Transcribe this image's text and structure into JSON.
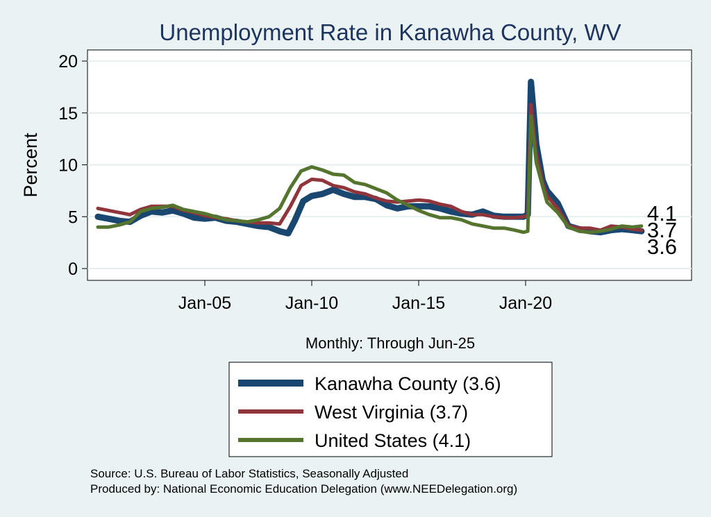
{
  "chart_data": {
    "type": "line",
    "title": "Unemployment Rate in Kanawha  County, WV",
    "ylabel": "Percent",
    "xlabel": "Monthly: Through Jun-25",
    "ylim": [
      0,
      20
    ],
    "xlim": [
      2000.0,
      2028.0
    ],
    "yticks": [
      0,
      5,
      10,
      15,
      20
    ],
    "xticks": [
      {
        "x": 2005.0,
        "label": "Jan-05"
      },
      {
        "x": 2010.0,
        "label": "Jan-10"
      },
      {
        "x": 2015.0,
        "label": "Jan-15"
      },
      {
        "x": 2020.0,
        "label": "Jan-20"
      }
    ],
    "grid": true,
    "legend_position": "bottom",
    "series": [
      {
        "name": "Kanawha  County",
        "legend": "Kanawha  County (3.6)",
        "end_label": "3.6",
        "color": "#1a476f",
        "points": [
          [
            2000.0,
            5.0
          ],
          [
            2000.5,
            4.8
          ],
          [
            2001.0,
            4.6
          ],
          [
            2001.5,
            4.5
          ],
          [
            2002.0,
            5.1
          ],
          [
            2002.5,
            5.5
          ],
          [
            2003.0,
            5.4
          ],
          [
            2003.5,
            5.6
          ],
          [
            2004.0,
            5.3
          ],
          [
            2004.5,
            4.9
          ],
          [
            2005.0,
            4.8
          ],
          [
            2005.5,
            4.9
          ],
          [
            2006.0,
            4.6
          ],
          [
            2006.5,
            4.5
          ],
          [
            2007.0,
            4.3
          ],
          [
            2007.5,
            4.1
          ],
          [
            2008.0,
            4.0
          ],
          [
            2008.5,
            3.6
          ],
          [
            2008.9,
            3.4
          ],
          [
            2009.2,
            4.6
          ],
          [
            2009.6,
            6.5
          ],
          [
            2010.0,
            7.0
          ],
          [
            2010.5,
            7.2
          ],
          [
            2011.0,
            7.6
          ],
          [
            2011.5,
            7.2
          ],
          [
            2012.0,
            6.9
          ],
          [
            2012.5,
            6.9
          ],
          [
            2013.0,
            6.7
          ],
          [
            2013.5,
            6.1
          ],
          [
            2014.0,
            5.8
          ],
          [
            2014.5,
            6.0
          ],
          [
            2015.0,
            6.0
          ],
          [
            2015.5,
            6.0
          ],
          [
            2016.0,
            5.8
          ],
          [
            2016.5,
            5.5
          ],
          [
            2017.0,
            5.3
          ],
          [
            2017.5,
            5.2
          ],
          [
            2018.0,
            5.5
          ],
          [
            2018.5,
            5.1
          ],
          [
            2019.0,
            5.0
          ],
          [
            2019.5,
            5.0
          ],
          [
            2019.9,
            5.0
          ],
          [
            2020.1,
            5.2
          ],
          [
            2020.25,
            18.0
          ],
          [
            2020.5,
            12.0
          ],
          [
            2020.8,
            8.5
          ],
          [
            2021.0,
            7.5
          ],
          [
            2021.5,
            6.3
          ],
          [
            2022.0,
            4.1
          ],
          [
            2022.5,
            3.8
          ],
          [
            2023.0,
            3.6
          ],
          [
            2023.5,
            3.5
          ],
          [
            2024.0,
            3.7
          ],
          [
            2024.5,
            3.8
          ],
          [
            2025.0,
            3.7
          ],
          [
            2025.42,
            3.6
          ]
        ]
      },
      {
        "name": "West Virginia",
        "legend": "West Virginia (3.7)",
        "end_label": "3.7",
        "color": "#90353b",
        "points": [
          [
            2000.0,
            5.8
          ],
          [
            2000.5,
            5.6
          ],
          [
            2001.0,
            5.4
          ],
          [
            2001.5,
            5.2
          ],
          [
            2002.0,
            5.7
          ],
          [
            2002.5,
            6.0
          ],
          [
            2003.0,
            6.0
          ],
          [
            2003.5,
            6.0
          ],
          [
            2004.0,
            5.6
          ],
          [
            2004.5,
            5.4
          ],
          [
            2005.0,
            5.1
          ],
          [
            2005.5,
            4.9
          ],
          [
            2006.0,
            4.8
          ],
          [
            2006.5,
            4.6
          ],
          [
            2007.0,
            4.5
          ],
          [
            2007.5,
            4.4
          ],
          [
            2008.0,
            4.4
          ],
          [
            2008.5,
            4.3
          ],
          [
            2009.0,
            6.0
          ],
          [
            2009.5,
            8.0
          ],
          [
            2010.0,
            8.6
          ],
          [
            2010.5,
            8.5
          ],
          [
            2011.0,
            8.0
          ],
          [
            2011.5,
            7.8
          ],
          [
            2012.0,
            7.4
          ],
          [
            2012.5,
            7.2
          ],
          [
            2013.0,
            6.8
          ],
          [
            2013.5,
            6.5
          ],
          [
            2014.0,
            6.4
          ],
          [
            2014.5,
            6.5
          ],
          [
            2015.0,
            6.6
          ],
          [
            2015.5,
            6.5
          ],
          [
            2016.0,
            6.2
          ],
          [
            2016.5,
            6.0
          ],
          [
            2017.0,
            5.5
          ],
          [
            2017.5,
            5.2
          ],
          [
            2018.0,
            5.2
          ],
          [
            2018.5,
            5.0
          ],
          [
            2019.0,
            4.9
          ],
          [
            2019.5,
            4.9
          ],
          [
            2019.9,
            5.0
          ],
          [
            2020.1,
            5.1
          ],
          [
            2020.25,
            15.8
          ],
          [
            2020.5,
            11.0
          ],
          [
            2020.8,
            8.2
          ],
          [
            2021.0,
            7.0
          ],
          [
            2021.5,
            5.8
          ],
          [
            2022.0,
            4.1
          ],
          [
            2022.5,
            3.9
          ],
          [
            2023.0,
            3.9
          ],
          [
            2023.5,
            3.7
          ],
          [
            2024.0,
            4.1
          ],
          [
            2024.5,
            4.0
          ],
          [
            2025.0,
            3.8
          ],
          [
            2025.42,
            3.7
          ]
        ]
      },
      {
        "name": "United States",
        "legend": "United States (4.1)",
        "end_label": "4.1",
        "color": "#55752f",
        "points": [
          [
            2000.0,
            4.0
          ],
          [
            2000.5,
            4.0
          ],
          [
            2001.0,
            4.2
          ],
          [
            2001.5,
            4.5
          ],
          [
            2002.0,
            5.5
          ],
          [
            2002.5,
            5.8
          ],
          [
            2003.0,
            5.9
          ],
          [
            2003.5,
            6.1
          ],
          [
            2004.0,
            5.7
          ],
          [
            2004.5,
            5.5
          ],
          [
            2005.0,
            5.3
          ],
          [
            2005.5,
            5.0
          ],
          [
            2006.0,
            4.7
          ],
          [
            2006.5,
            4.6
          ],
          [
            2007.0,
            4.5
          ],
          [
            2007.5,
            4.7
          ],
          [
            2008.0,
            5.0
          ],
          [
            2008.5,
            5.8
          ],
          [
            2009.0,
            7.8
          ],
          [
            2009.5,
            9.4
          ],
          [
            2010.0,
            9.8
          ],
          [
            2010.5,
            9.5
          ],
          [
            2011.0,
            9.1
          ],
          [
            2011.5,
            9.0
          ],
          [
            2012.0,
            8.3
          ],
          [
            2012.5,
            8.1
          ],
          [
            2013.0,
            7.7
          ],
          [
            2013.5,
            7.3
          ],
          [
            2014.0,
            6.6
          ],
          [
            2014.5,
            6.1
          ],
          [
            2015.0,
            5.6
          ],
          [
            2015.5,
            5.2
          ],
          [
            2016.0,
            4.9
          ],
          [
            2016.5,
            4.9
          ],
          [
            2017.0,
            4.7
          ],
          [
            2017.5,
            4.3
          ],
          [
            2018.0,
            4.1
          ],
          [
            2018.5,
            3.9
          ],
          [
            2019.0,
            3.9
          ],
          [
            2019.5,
            3.7
          ],
          [
            2019.9,
            3.5
          ],
          [
            2020.1,
            3.6
          ],
          [
            2020.25,
            14.7
          ],
          [
            2020.5,
            10.2
          ],
          [
            2020.8,
            7.9
          ],
          [
            2021.0,
            6.4
          ],
          [
            2021.5,
            5.4
          ],
          [
            2022.0,
            4.0
          ],
          [
            2022.5,
            3.6
          ],
          [
            2023.0,
            3.5
          ],
          [
            2023.5,
            3.6
          ],
          [
            2024.0,
            3.8
          ],
          [
            2024.5,
            4.1
          ],
          [
            2025.0,
            4.0
          ],
          [
            2025.42,
            4.1
          ]
        ]
      }
    ],
    "source": [
      "Source: U.S. Bureau of Labor Statistics, Seasonally Adjusted",
      "Produced by: National Economic Education Delegation (www.NEEDelegation.org)"
    ]
  }
}
